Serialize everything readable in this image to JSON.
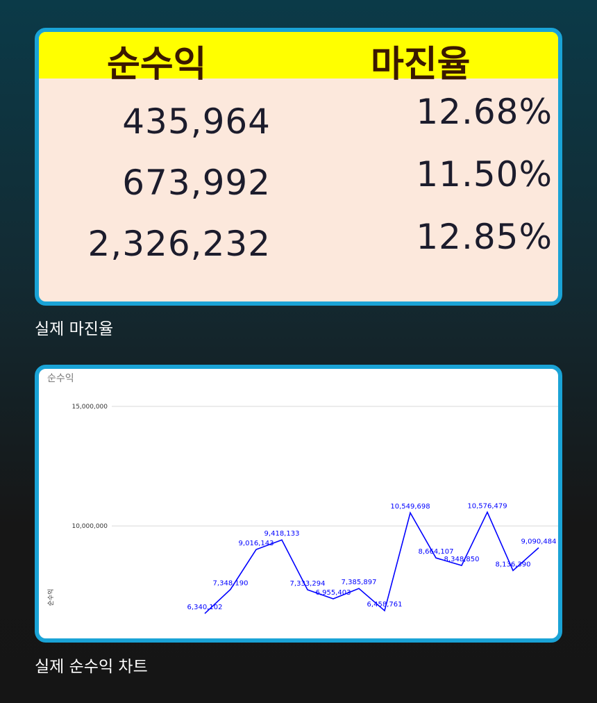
{
  "table": {
    "header": [
      "순수익",
      "마진율"
    ],
    "rows": [
      [
        "435,964",
        "12.68%"
      ],
      [
        "673,992",
        "11.50%"
      ],
      [
        "2,326,232",
        "12.85%"
      ]
    ]
  },
  "caption_table": "실제 마진율",
  "chart_data": {
    "type": "line",
    "title": "순수익",
    "y_label": "순수익",
    "categories": [
      null,
      null,
      null,
      null,
      null,
      null,
      null,
      null,
      null,
      null,
      null,
      null,
      null,
      null
    ],
    "series": [
      {
        "name": "순수익",
        "color": "#0000ff",
        "values": [
          6340102,
          7348190,
          9016143,
          9418133,
          7333294,
          6955403,
          7385897,
          6458761,
          10549698,
          8664107,
          8348850,
          10576479,
          8136390,
          9090484
        ],
        "value_labels": [
          "6,340,102",
          "7,348,190",
          "9,016,143",
          "9,418,133",
          "7,333,294",
          "6,955,403",
          "7,385,897",
          "6,458,761",
          "10,549,698",
          "8,664,107",
          "8,348,850",
          "10,576,479",
          "8,136,390",
          "9,090,484"
        ]
      }
    ],
    "ylim": [
      5300000,
      15000000
    ],
    "yticks": [
      {
        "value": 10000000,
        "label": "10,000,000"
      },
      {
        "value": 15000000,
        "label": "15,000,000"
      }
    ],
    "grid": true
  },
  "caption_chart": "실제 순수익 차트"
}
